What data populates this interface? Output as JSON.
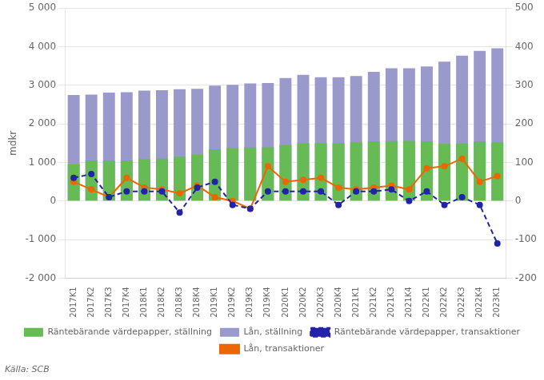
{
  "chart_data": {
    "type": "bar",
    "ylabel": "mdkr",
    "annotations": [
      "Källa: SCB"
    ],
    "categories": [
      "2017K1",
      "2017K2",
      "2017K3",
      "2017K4",
      "2018K1",
      "2018K2",
      "2018K3",
      "2018K4",
      "2019K1",
      "2019K2",
      "2019K3",
      "2019K4",
      "2020K1",
      "2020K2",
      "2020K3",
      "2020K4",
      "2021K1",
      "2021K2",
      "2021K3",
      "2021K4",
      "2022K1",
      "2022K2",
      "2022K3",
      "2022K4",
      "2023K1"
    ],
    "series": [
      {
        "name": "Räntebärande värdepapper, ställning",
        "type": "bar",
        "color": "#66bb55",
        "values": [
          950,
          1050,
          1050,
          1050,
          1090,
          1100,
          1150,
          1200,
          1340,
          1370,
          1390,
          1395,
          1450,
          1500,
          1500,
          1500,
          1520,
          1550,
          1555,
          1560,
          1550,
          1480,
          1490,
          1550,
          1520
        ]
      },
      {
        "name": "Lån, ställning",
        "type": "bar",
        "color": "#9999cc",
        "values": [
          2750,
          2760,
          2810,
          2820,
          2860,
          2870,
          2900,
          2910,
          2990,
          3010,
          3050,
          3060,
          3190,
          3270,
          3210,
          3210,
          3240,
          3350,
          3440,
          3440,
          3490,
          3610,
          3770,
          3890,
          3960
        ]
      },
      {
        "name": "Räntebärande värdepapper, transaktioner",
        "type": "line",
        "axis": "y2",
        "color": "#2222aa",
        "line_style": "dashed",
        "marker": "circle",
        "values": [
          60,
          70,
          10,
          25,
          25,
          25,
          -30,
          35,
          50,
          -10,
          -20,
          25,
          25,
          25,
          25,
          -10,
          25,
          25,
          30,
          0,
          25,
          -10,
          10,
          -10,
          -110
        ]
      },
      {
        "name": "Lån, transaktioner",
        "type": "line",
        "axis": "y2",
        "color": "#ee6600",
        "line_style": "solid",
        "marker": "circle",
        "values": [
          50,
          30,
          10,
          60,
          35,
          30,
          20,
          40,
          10,
          0,
          -20,
          90,
          50,
          55,
          60,
          35,
          30,
          35,
          40,
          30,
          85,
          90,
          110,
          50,
          65
        ]
      }
    ],
    "ylim": [
      -2000,
      5000
    ],
    "yticks": [
      {
        "value": -2000,
        "label": "-2 000"
      },
      {
        "value": -1000,
        "label": "-1 000"
      },
      0,
      {
        "value": 1000,
        "label": "1 000"
      },
      {
        "value": 2000,
        "label": "2 000"
      },
      {
        "value": 3000,
        "label": "3 000"
      },
      {
        "value": 4000,
        "label": "4 000"
      },
      {
        "value": 5000,
        "label": "5 000"
      }
    ],
    "y2lim": [
      -200,
      500
    ],
    "y2ticks": [
      -200,
      -100,
      0,
      100,
      200,
      300,
      400,
      500
    ],
    "grid": true,
    "legend": "bottom"
  }
}
